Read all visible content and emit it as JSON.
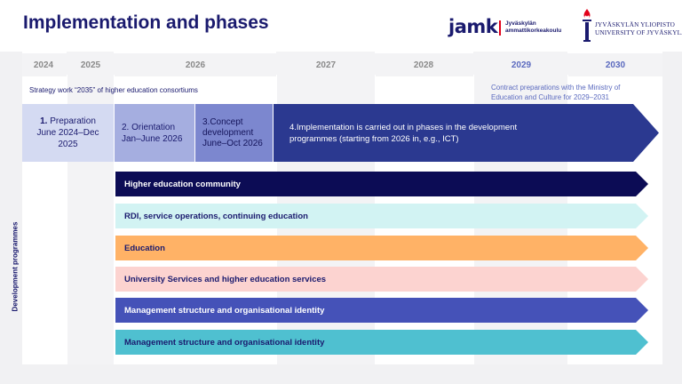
{
  "header": {
    "title": "Implementation and phases",
    "jamk": {
      "word": "jamk",
      "line1": "Jyväskylän",
      "line2": "ammattikorkeakoulu",
      "accent": "#e2001a"
    },
    "jyu": {
      "line1": "JYVÄSKYLÄN YLIOPISTO",
      "line2": "UNIVERSITY OF JYVÄSKYLÄ",
      "icon": "torch-icon"
    }
  },
  "timeline": {
    "years": [
      "2024",
      "2025",
      "2026",
      "2027",
      "2028",
      "2029",
      "2030"
    ],
    "highlight_color": "#5b6abf"
  },
  "notes": {
    "strategy": "Strategy work “2035” of higher education consortiums",
    "contract_line1": "Contract preparations with the Ministry of",
    "contract_line2": "Education and Culture for 2029–2031"
  },
  "phases": [
    {
      "number": "1.",
      "name": "Preparation",
      "period_line1": "June 2024–Dec",
      "period_line2": "2025",
      "color": "#d4daf2"
    },
    {
      "name": "2. Orientation",
      "period": "Jan–June 2026",
      "color": "#a5aee0"
    },
    {
      "name_line1": "3.Concept",
      "name_line2": "development",
      "period": "June–Oct 2026",
      "color": "#7c87cf"
    },
    {
      "line1": "4.Implementation is carried out in phases in the development",
      "line2": "programmes (starting from 2026 in, e.g., ICT)",
      "color": "#2b3990"
    }
  ],
  "programmes": {
    "side_label": "Development programmes",
    "items": [
      {
        "label": "Higher education community",
        "bg": "#0c0c55",
        "fg": "#ffffff"
      },
      {
        "label": "RDI, service operations, continuing education",
        "bg": "#d2f3f3",
        "fg": "#1a1a6e"
      },
      {
        "label": "Education",
        "bg": "#ffb266",
        "fg": "#1a1a6e"
      },
      {
        "label": "University Services and higher education services",
        "bg": "#fcd3d0",
        "fg": "#1a1a6e"
      },
      {
        "label": "Management structure and organisational identity",
        "bg": "#4552b8",
        "fg": "#ffffff"
      },
      {
        "label": "Management structure and organisational identity",
        "bg": "#4fc0d0",
        "fg": "#1a1a6e"
      }
    ]
  }
}
